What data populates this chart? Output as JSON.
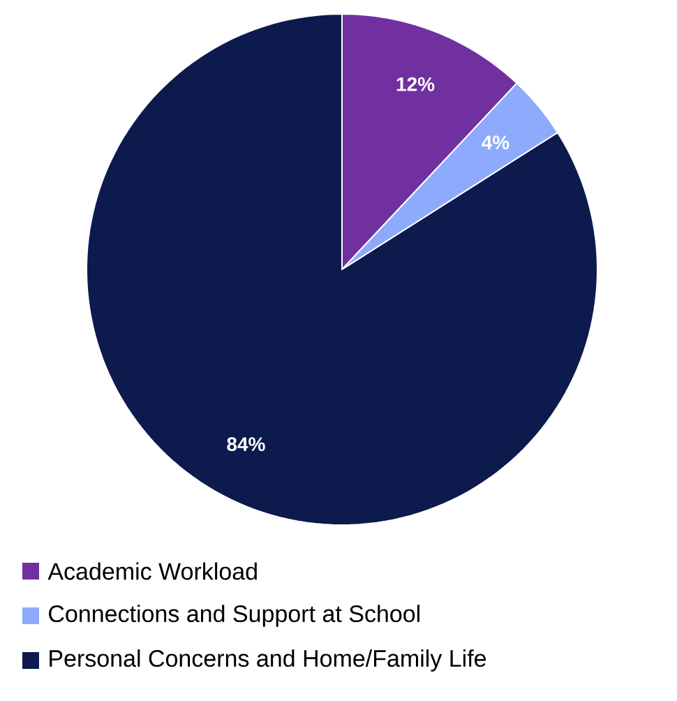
{
  "chart_data": {
    "type": "pie",
    "categories": [
      "Academic Workload",
      "Connections and Support at School",
      "Personal Concerns and Home/Family Life"
    ],
    "values": [
      12,
      4,
      84
    ],
    "colors": [
      "#7030a0",
      "#8eaafc",
      "#0c1a4d"
    ],
    "value_labels": [
      "12%",
      "4%",
      "84%"
    ],
    "legend": "bottom"
  }
}
